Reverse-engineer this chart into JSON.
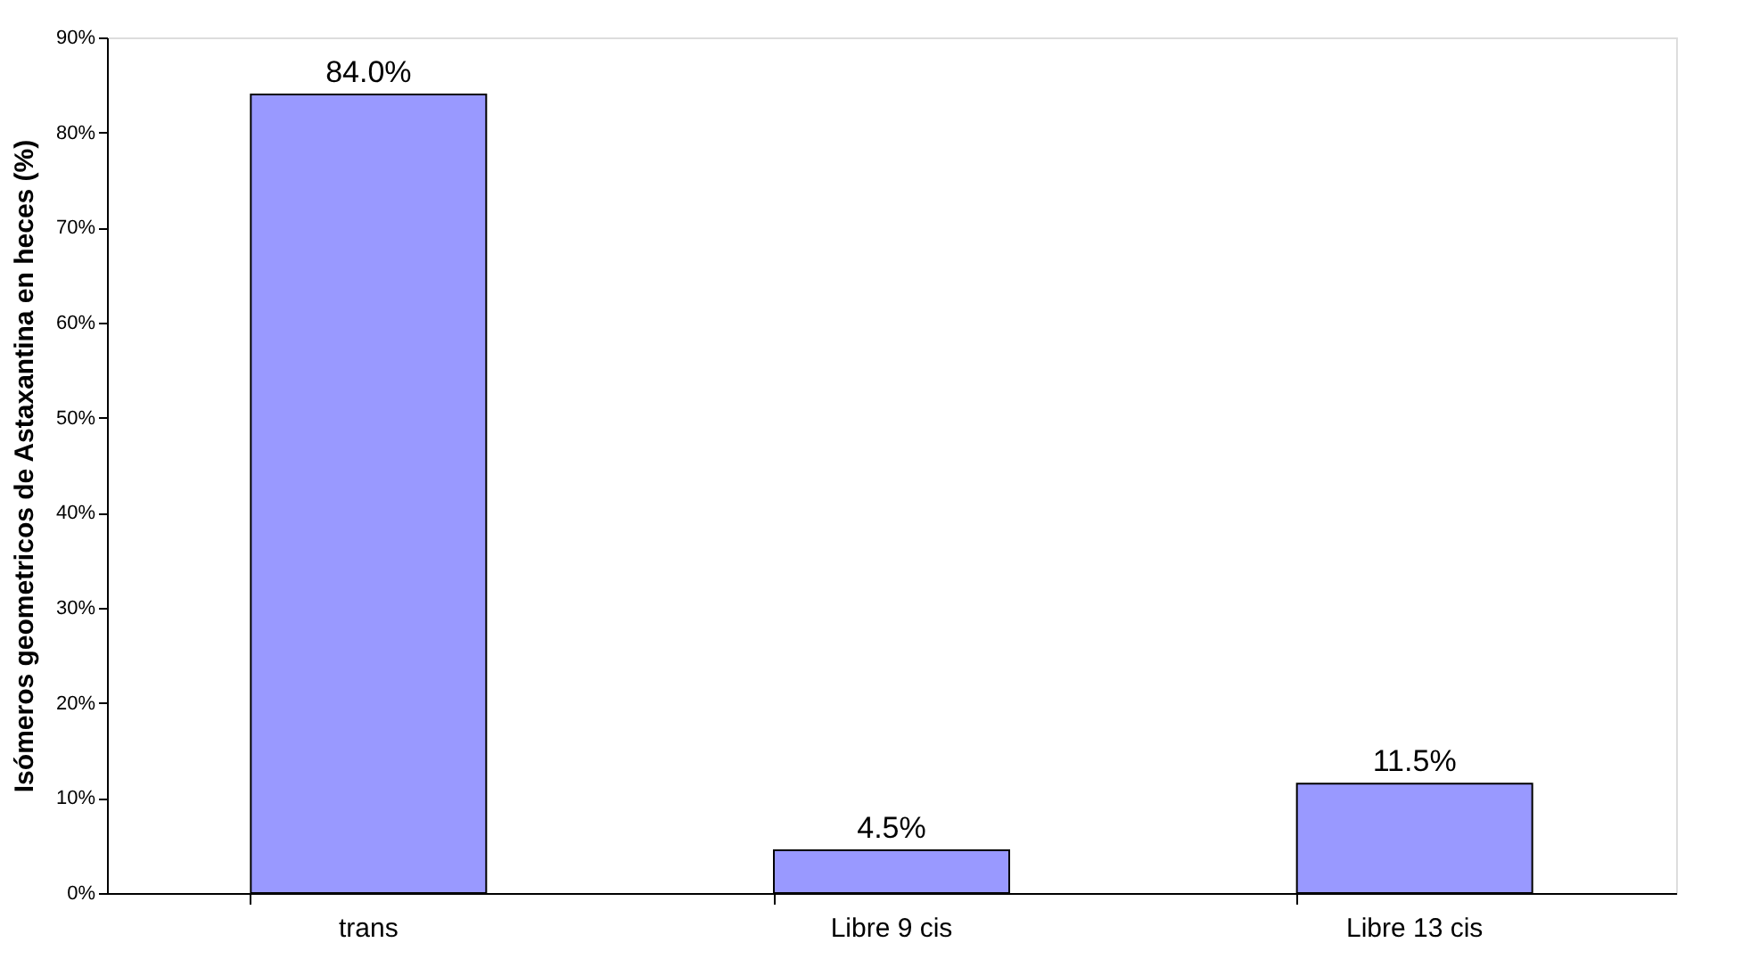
{
  "chart_data": {
    "type": "bar",
    "ylabel": "Isómeros geometricos de Astaxantina en heces (%)",
    "categories": [
      "trans",
      "Libre 9 cis",
      "Libre 13 cis"
    ],
    "values": [
      84.0,
      4.5,
      11.5
    ],
    "value_labels": [
      "84.0%",
      "4.5%",
      "11.5%"
    ],
    "color": "#9999ff",
    "ylim": [
      0,
      90
    ],
    "yticks": [
      {
        "value": 0,
        "label": "0%"
      },
      {
        "value": 10,
        "label": "10%"
      },
      {
        "value": 20,
        "label": "20%"
      },
      {
        "value": 30,
        "label": "30%"
      },
      {
        "value": 40,
        "label": "40%"
      },
      {
        "value": 50,
        "label": "50%"
      },
      {
        "value": 60,
        "label": "60%"
      },
      {
        "value": 70,
        "label": "70%"
      },
      {
        "value": 80,
        "label": "80%"
      },
      {
        "value": 90,
        "label": "90%"
      }
    ],
    "grid": false
  }
}
